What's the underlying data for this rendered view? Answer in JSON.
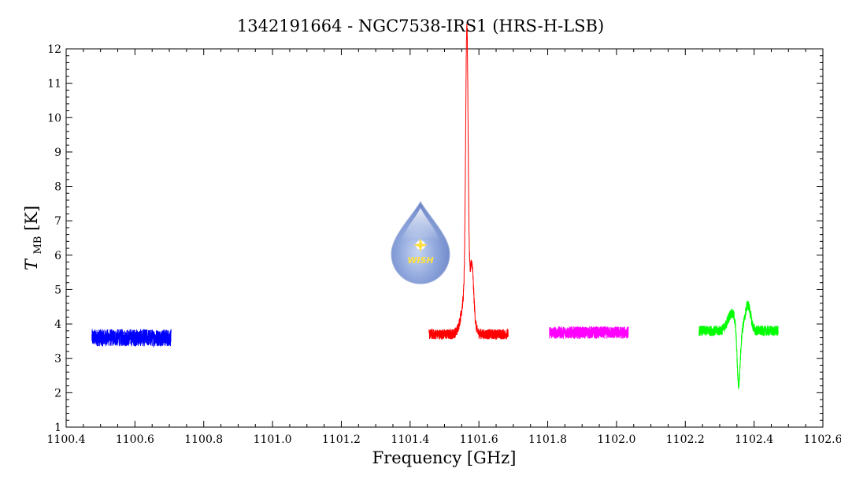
{
  "chart_data": {
    "type": "line",
    "title": "1342191664 - NGC7538-IRS1 (HRS-H-LSB)",
    "xlabel": "Frequency [GHz]",
    "ylabel_main": "T",
    "ylabel_sub": "MB",
    "ylabel_unit": "[K]",
    "xlim": [
      1100.4,
      1102.6
    ],
    "ylim": [
      1,
      12
    ],
    "x_ticks": [
      "1100.4",
      "1100.6",
      "1100.8",
      "1101.0",
      "1101.2",
      "1101.4",
      "1101.6",
      "1101.8",
      "1102.0",
      "1102.2",
      "1102.4",
      "1102.6"
    ],
    "y_ticks": [
      "1",
      "2",
      "3",
      "4",
      "5",
      "6",
      "7",
      "8",
      "9",
      "10",
      "11",
      "12"
    ],
    "grid": false,
    "legend": "none",
    "series": [
      {
        "color": "#0000ff",
        "x_range": [
          1100.475,
          1100.705
        ],
        "baseline": 3.6,
        "noise_amp": 0.25,
        "features": []
      },
      {
        "color": "#ff0000",
        "x_range": [
          1101.455,
          1101.685
        ],
        "baseline": 3.7,
        "noise_amp": 0.15,
        "features": [
          {
            "center": 1101.565,
            "amplitude": 7.6,
            "width": 0.0035
          },
          {
            "center": 1101.565,
            "amplitude": 1.4,
            "width": 0.013
          },
          {
            "center": 1101.58,
            "amplitude": 1.3,
            "width": 0.005
          }
        ]
      },
      {
        "color": "#ff00ff",
        "x_range": [
          1101.805,
          1102.035
        ],
        "baseline": 3.75,
        "noise_amp": 0.18,
        "features": []
      },
      {
        "color": "#00ff00",
        "x_range": [
          1102.24,
          1102.47
        ],
        "baseline": 3.8,
        "noise_amp": 0.15,
        "features": [
          {
            "center": 1102.355,
            "amplitude": -1.7,
            "width": 0.0045
          },
          {
            "center": 1102.335,
            "amplitude": 0.5,
            "width": 0.012
          },
          {
            "center": 1102.382,
            "amplitude": 0.75,
            "width": 0.008
          }
        ]
      }
    ],
    "logo_text": "WISH"
  }
}
